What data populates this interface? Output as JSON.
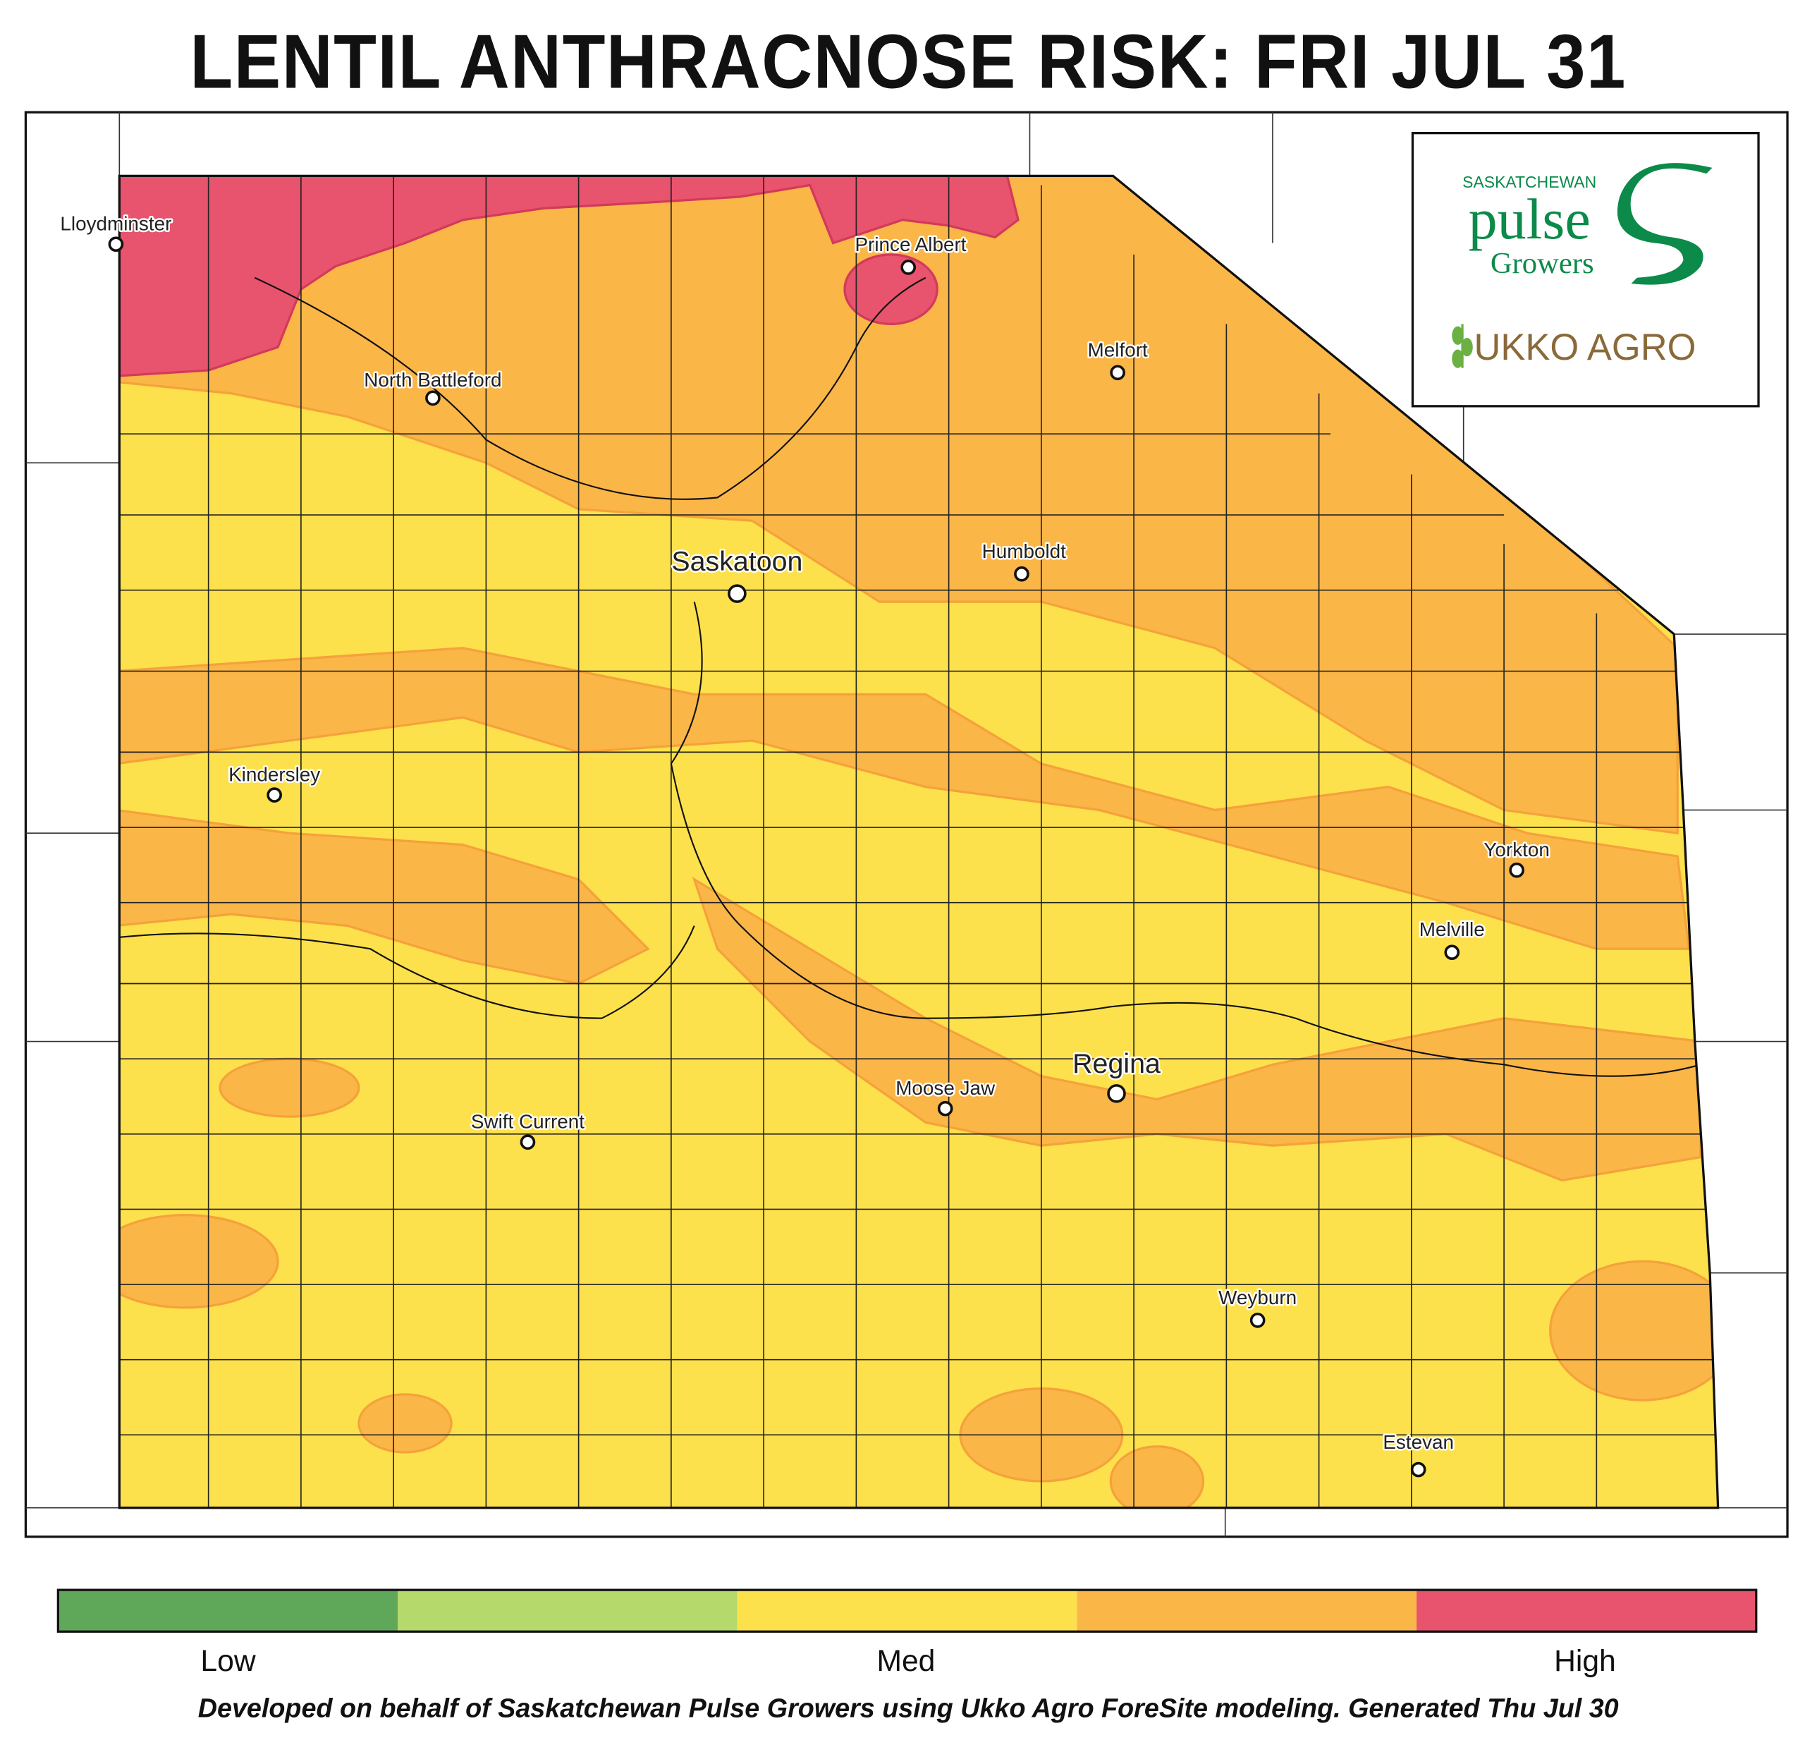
{
  "title": "LENTIL ANTHRACNOSE RISK: FRI JUL 31",
  "cities": [
    "Lloydminster",
    "Prince Albert",
    "Melfort",
    "North Battleford",
    "Saskatoon",
    "Humboldt",
    "Kindersley",
    "Yorkton",
    "Melville",
    "Regina",
    "Moose Jaw",
    "Swift Current",
    "Weyburn",
    "Estevan"
  ],
  "logo": {
    "line1": "SASKATCHEWAN",
    "line2": "pulse",
    "line3": "Growers",
    "partner": "UKKO AGRO"
  },
  "legend": {
    "colors": [
      "#5fa85a",
      "#b5d96b",
      "#fde14c",
      "#fbb648",
      "#e8536e"
    ],
    "labels": [
      "Low",
      "Med",
      "High"
    ]
  },
  "footer": "Developed on behalf of Saskatchewan Pulse Growers using Ukko Agro ForeSite modeling. Generated Thu Jul 30"
}
